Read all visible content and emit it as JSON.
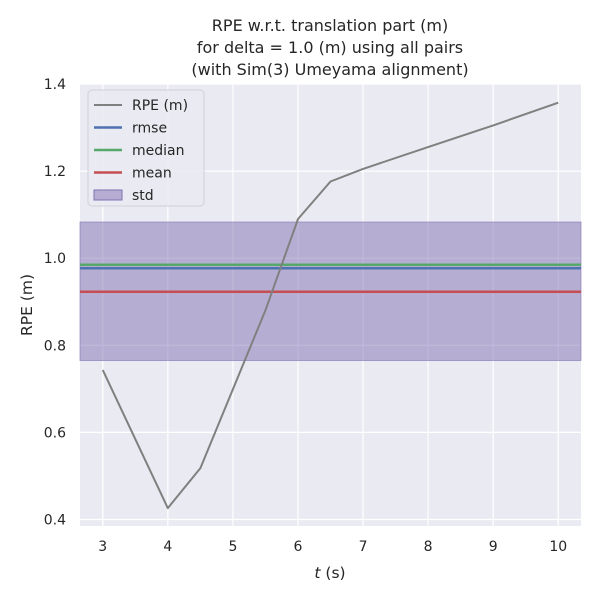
{
  "chart_data": {
    "type": "line",
    "title_lines": [
      "RPE w.r.t. translation part (m)",
      "for delta = 1.0 (m) using all pairs",
      "(with Sim(3) Umeyama alignment)"
    ],
    "xlabel_var": "t",
    "xlabel_unit": " (s)",
    "ylabel": "RPE (m)",
    "xlim": [
      2.65,
      10.35
    ],
    "ylim": [
      0.385,
      1.4
    ],
    "x_ticks": [
      3,
      4,
      5,
      6,
      7,
      8,
      9,
      10
    ],
    "y_ticks": [
      "0.4",
      "0.6",
      "0.8",
      "1.0",
      "1.2",
      "1.4"
    ],
    "grid": true,
    "legend_position": "upper-left",
    "series": [
      {
        "name": "RPE (m)",
        "color": "#808080",
        "x": [
          3.0,
          4.0,
          4.5,
          5.5,
          6.0,
          6.5,
          7.0,
          8.0,
          9.0,
          10.0
        ],
        "y": [
          0.743,
          0.426,
          0.518,
          0.88,
          1.09,
          1.176,
          1.205,
          1.255,
          1.305,
          1.357
        ]
      }
    ],
    "stats": {
      "rmse": {
        "label": "rmse",
        "value": 0.977,
        "color": "#4c72b0"
      },
      "median": {
        "label": "median",
        "value": 0.985,
        "color": "#55a868"
      },
      "mean": {
        "label": "mean",
        "value": 0.923,
        "color": "#c44e52"
      },
      "std": {
        "label": "std",
        "lower": 0.765,
        "upper": 1.083,
        "color": "#8172b2"
      }
    }
  }
}
